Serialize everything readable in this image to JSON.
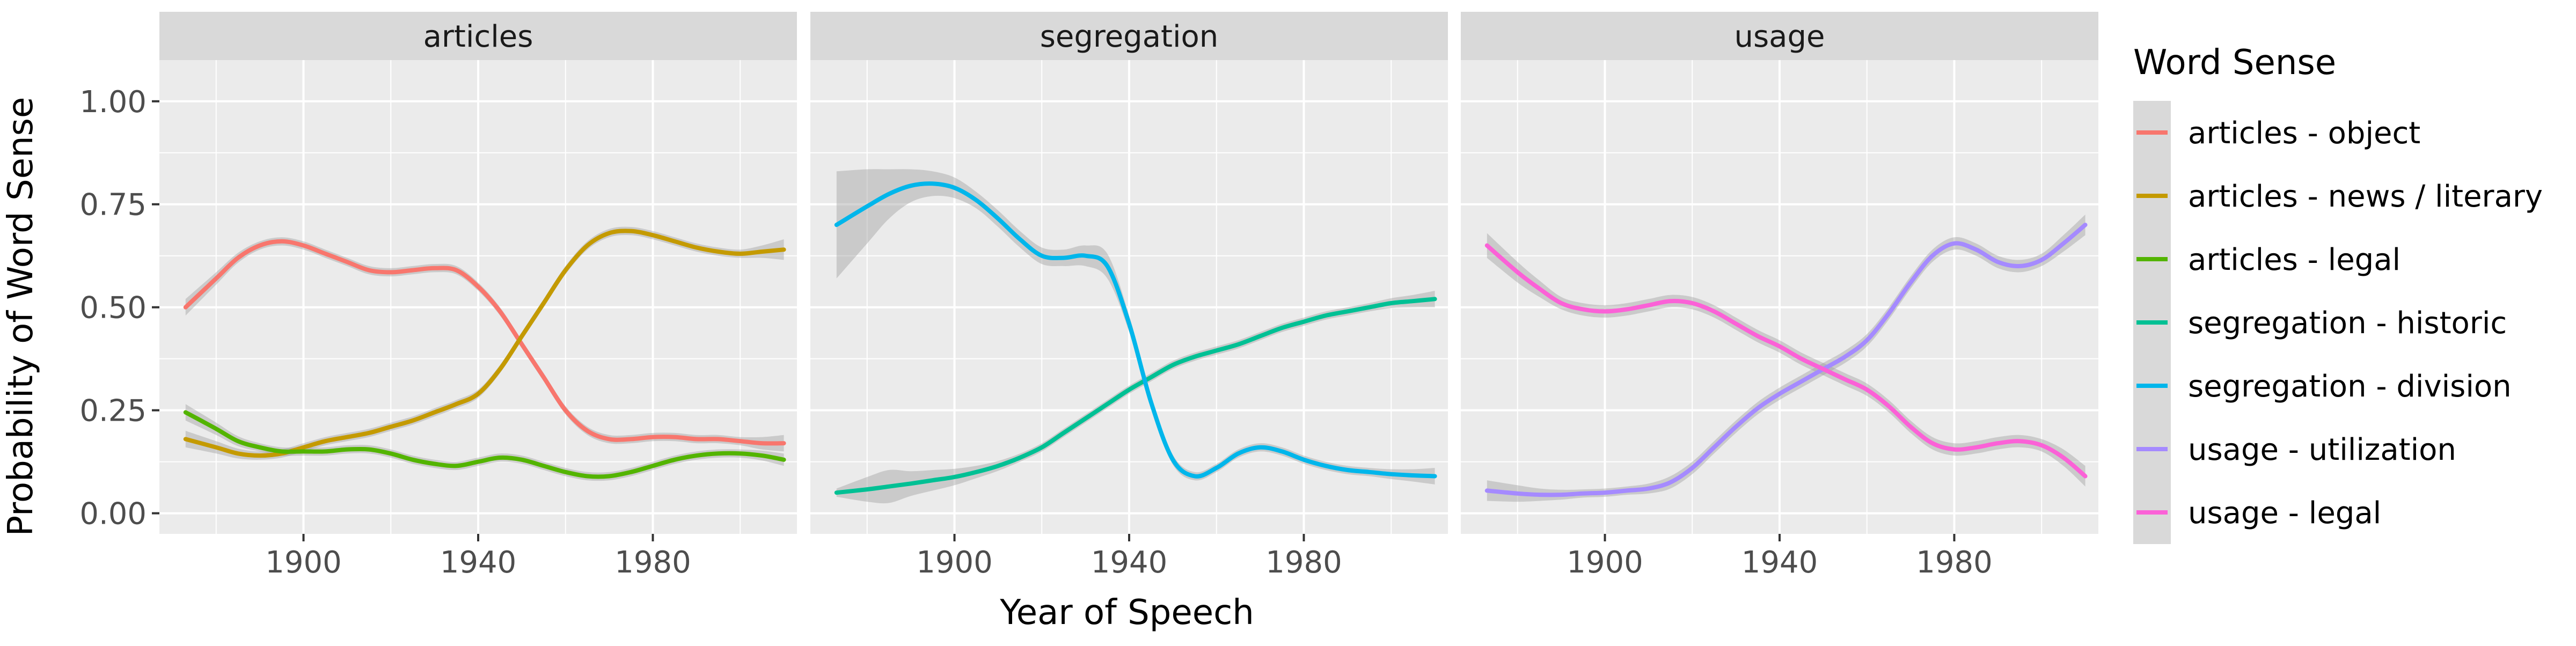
{
  "chart_data": {
    "type": "line",
    "xlabel": "Year of Speech",
    "ylabel": "Probability of Word Sense",
    "xlim": [
      1867,
      2013
    ],
    "ylim": [
      -0.05,
      1.1
    ],
    "x_ticks": [
      1900,
      1940,
      1980
    ],
    "y_ticks": [
      0,
      0.25,
      0.5,
      0.75,
      1.0
    ],
    "y_tick_labels": [
      "0.00",
      "0.25",
      "0.50",
      "0.75",
      "1.00"
    ],
    "grid": true,
    "legend": {
      "title": "Word Sense",
      "position": "right",
      "entries": [
        {
          "label": "articles - object",
          "color": "#F8766D"
        },
        {
          "label": "articles - news / literary",
          "color": "#C49A00"
        },
        {
          "label": "articles - legal",
          "color": "#53B400"
        },
        {
          "label": "segregation - historic",
          "color": "#00C094"
        },
        {
          "label": "segregation - division",
          "color": "#00B6EB"
        },
        {
          "label": "usage - utilization",
          "color": "#A58AFF"
        },
        {
          "label": "usage - legal",
          "color": "#FB61D7"
        }
      ]
    },
    "panels": [
      {
        "title": "articles",
        "series": [
          {
            "name": "articles - object",
            "color": "#F8766D",
            "x": [
              1873,
              1880,
              1885,
              1890,
              1895,
              1900,
              1905,
              1910,
              1915,
              1920,
              1925,
              1930,
              1935,
              1940,
              1945,
              1950,
              1955,
              1960,
              1965,
              1970,
              1975,
              1980,
              1985,
              1990,
              1995,
              2000,
              2005,
              2010
            ],
            "y": [
              0.5,
              0.57,
              0.62,
              0.65,
              0.66,
              0.65,
              0.63,
              0.61,
              0.59,
              0.585,
              0.59,
              0.595,
              0.59,
              0.55,
              0.49,
              0.41,
              0.33,
              0.25,
              0.2,
              0.18,
              0.18,
              0.185,
              0.185,
              0.18,
              0.18,
              0.175,
              0.17,
              0.17
            ],
            "band": [
              0.02,
              0.015,
              0.012,
              0.01,
              0.01,
              0.01,
              0.01,
              0.01,
              0.01,
              0.01,
              0.01,
              0.01,
              0.01,
              0.01,
              0.01,
              0.01,
              0.01,
              0.01,
              0.01,
              0.01,
              0.01,
              0.01,
              0.01,
              0.01,
              0.01,
              0.01,
              0.015,
              0.02
            ]
          },
          {
            "name": "articles - news / literary",
            "color": "#C49A00",
            "x": [
              1873,
              1880,
              1885,
              1890,
              1895,
              1900,
              1905,
              1910,
              1915,
              1920,
              1925,
              1930,
              1935,
              1940,
              1945,
              1950,
              1955,
              1960,
              1965,
              1970,
              1975,
              1980,
              1985,
              1990,
              1995,
              2000,
              2005,
              2010
            ],
            "y": [
              0.18,
              0.16,
              0.145,
              0.14,
              0.145,
              0.16,
              0.175,
              0.185,
              0.195,
              0.21,
              0.225,
              0.245,
              0.265,
              0.29,
              0.35,
              0.43,
              0.51,
              0.59,
              0.65,
              0.68,
              0.685,
              0.675,
              0.66,
              0.645,
              0.635,
              0.63,
              0.635,
              0.64
            ],
            "band": [
              0.02,
              0.015,
              0.012,
              0.01,
              0.01,
              0.01,
              0.01,
              0.01,
              0.01,
              0.01,
              0.01,
              0.01,
              0.01,
              0.01,
              0.01,
              0.01,
              0.01,
              0.01,
              0.01,
              0.01,
              0.01,
              0.01,
              0.01,
              0.01,
              0.01,
              0.01,
              0.015,
              0.025
            ]
          },
          {
            "name": "articles - legal",
            "color": "#53B400",
            "x": [
              1873,
              1880,
              1885,
              1890,
              1895,
              1900,
              1905,
              1910,
              1915,
              1920,
              1925,
              1930,
              1935,
              1940,
              1945,
              1950,
              1955,
              1960,
              1965,
              1970,
              1975,
              1980,
              1985,
              1990,
              1995,
              2000,
              2005,
              2010
            ],
            "y": [
              0.245,
              0.205,
              0.175,
              0.16,
              0.15,
              0.15,
              0.15,
              0.155,
              0.155,
              0.145,
              0.13,
              0.12,
              0.115,
              0.125,
              0.135,
              0.13,
              0.115,
              0.1,
              0.09,
              0.09,
              0.1,
              0.115,
              0.13,
              0.14,
              0.145,
              0.145,
              0.14,
              0.13
            ],
            "band": [
              0.02,
              0.015,
              0.012,
              0.01,
              0.01,
              0.01,
              0.01,
              0.01,
              0.01,
              0.01,
              0.01,
              0.01,
              0.01,
              0.01,
              0.01,
              0.01,
              0.01,
              0.01,
              0.01,
              0.01,
              0.01,
              0.01,
              0.01,
              0.01,
              0.01,
              0.01,
              0.012,
              0.015
            ]
          }
        ]
      },
      {
        "title": "segregation",
        "series": [
          {
            "name": "segregation - historic",
            "color": "#00C094",
            "x": [
              1873,
              1880,
              1885,
              1890,
              1895,
              1900,
              1905,
              1910,
              1915,
              1920,
              1925,
              1930,
              1935,
              1940,
              1945,
              1950,
              1955,
              1960,
              1965,
              1970,
              1975,
              1980,
              1985,
              1990,
              1995,
              2000,
              2005,
              2010
            ],
            "y": [
              0.05,
              0.058,
              0.065,
              0.072,
              0.08,
              0.088,
              0.1,
              0.115,
              0.135,
              0.16,
              0.195,
              0.23,
              0.265,
              0.3,
              0.33,
              0.36,
              0.38,
              0.395,
              0.41,
              0.43,
              0.45,
              0.465,
              0.48,
              0.49,
              0.5,
              0.51,
              0.515,
              0.52
            ],
            "band": [
              0.01,
              0.03,
              0.04,
              0.03,
              0.025,
              0.02,
              0.015,
              0.012,
              0.01,
              0.01,
              0.01,
              0.01,
              0.01,
              0.01,
              0.01,
              0.01,
              0.01,
              0.01,
              0.01,
              0.01,
              0.01,
              0.01,
              0.01,
              0.01,
              0.01,
              0.012,
              0.015,
              0.02
            ]
          },
          {
            "name": "segregation - division",
            "color": "#00B6EB",
            "x": [
              1873,
              1880,
              1885,
              1890,
              1895,
              1900,
              1905,
              1910,
              1915,
              1920,
              1925,
              1930,
              1935,
              1940,
              1945,
              1950,
              1955,
              1960,
              1965,
              1970,
              1975,
              1980,
              1985,
              1990,
              1995,
              2000,
              2005,
              2010
            ],
            "y": [
              0.7,
              0.745,
              0.775,
              0.795,
              0.8,
              0.79,
              0.76,
              0.715,
              0.665,
              0.625,
              0.62,
              0.625,
              0.6,
              0.46,
              0.27,
              0.13,
              0.09,
              0.11,
              0.145,
              0.16,
              0.15,
              0.13,
              0.115,
              0.105,
              0.1,
              0.095,
              0.092,
              0.09
            ],
            "band": [
              0.13,
              0.09,
              0.06,
              0.04,
              0.03,
              0.025,
              0.02,
              0.02,
              0.02,
              0.02,
              0.02,
              0.025,
              0.03,
              0.02,
              0.015,
              0.012,
              0.01,
              0.01,
              0.01,
              0.01,
              0.01,
              0.01,
              0.01,
              0.01,
              0.01,
              0.012,
              0.015,
              0.02
            ]
          }
        ]
      },
      {
        "title": "usage",
        "series": [
          {
            "name": "usage - utilization",
            "color": "#A58AFF",
            "x": [
              1873,
              1880,
              1885,
              1890,
              1895,
              1900,
              1905,
              1910,
              1915,
              1920,
              1925,
              1930,
              1935,
              1940,
              1945,
              1950,
              1955,
              1960,
              1965,
              1970,
              1975,
              1980,
              1985,
              1990,
              1995,
              2000,
              2005,
              2010
            ],
            "y": [
              0.055,
              0.048,
              0.045,
              0.045,
              0.048,
              0.05,
              0.055,
              0.06,
              0.075,
              0.11,
              0.16,
              0.21,
              0.255,
              0.29,
              0.32,
              0.35,
              0.38,
              0.42,
              0.485,
              0.56,
              0.625,
              0.655,
              0.64,
              0.61,
              0.6,
              0.615,
              0.655,
              0.7
            ],
            "band": [
              0.025,
              0.02,
              0.015,
              0.012,
              0.01,
              0.01,
              0.01,
              0.012,
              0.015,
              0.015,
              0.015,
              0.015,
              0.015,
              0.015,
              0.015,
              0.015,
              0.015,
              0.015,
              0.015,
              0.015,
              0.015,
              0.015,
              0.015,
              0.015,
              0.015,
              0.015,
              0.02,
              0.025
            ]
          },
          {
            "name": "usage - legal",
            "color": "#FB61D7",
            "x": [
              1873,
              1880,
              1885,
              1890,
              1895,
              1900,
              1905,
              1910,
              1915,
              1920,
              1925,
              1930,
              1935,
              1940,
              1945,
              1950,
              1955,
              1960,
              1965,
              1970,
              1975,
              1980,
              1985,
              1990,
              1995,
              2000,
              2005,
              2010
            ],
            "y": [
              0.65,
              0.585,
              0.545,
              0.51,
              0.495,
              0.49,
              0.495,
              0.505,
              0.515,
              0.51,
              0.49,
              0.46,
              0.43,
              0.405,
              0.375,
              0.35,
              0.325,
              0.3,
              0.26,
              0.21,
              0.17,
              0.155,
              0.16,
              0.17,
              0.175,
              0.165,
              0.135,
              0.09
            ],
            "band": [
              0.03,
              0.025,
              0.02,
              0.015,
              0.015,
              0.015,
              0.015,
              0.015,
              0.015,
              0.015,
              0.015,
              0.015,
              0.015,
              0.015,
              0.015,
              0.015,
              0.015,
              0.015,
              0.015,
              0.015,
              0.015,
              0.015,
              0.015,
              0.015,
              0.015,
              0.015,
              0.02,
              0.025
            ]
          }
        ]
      }
    ]
  }
}
